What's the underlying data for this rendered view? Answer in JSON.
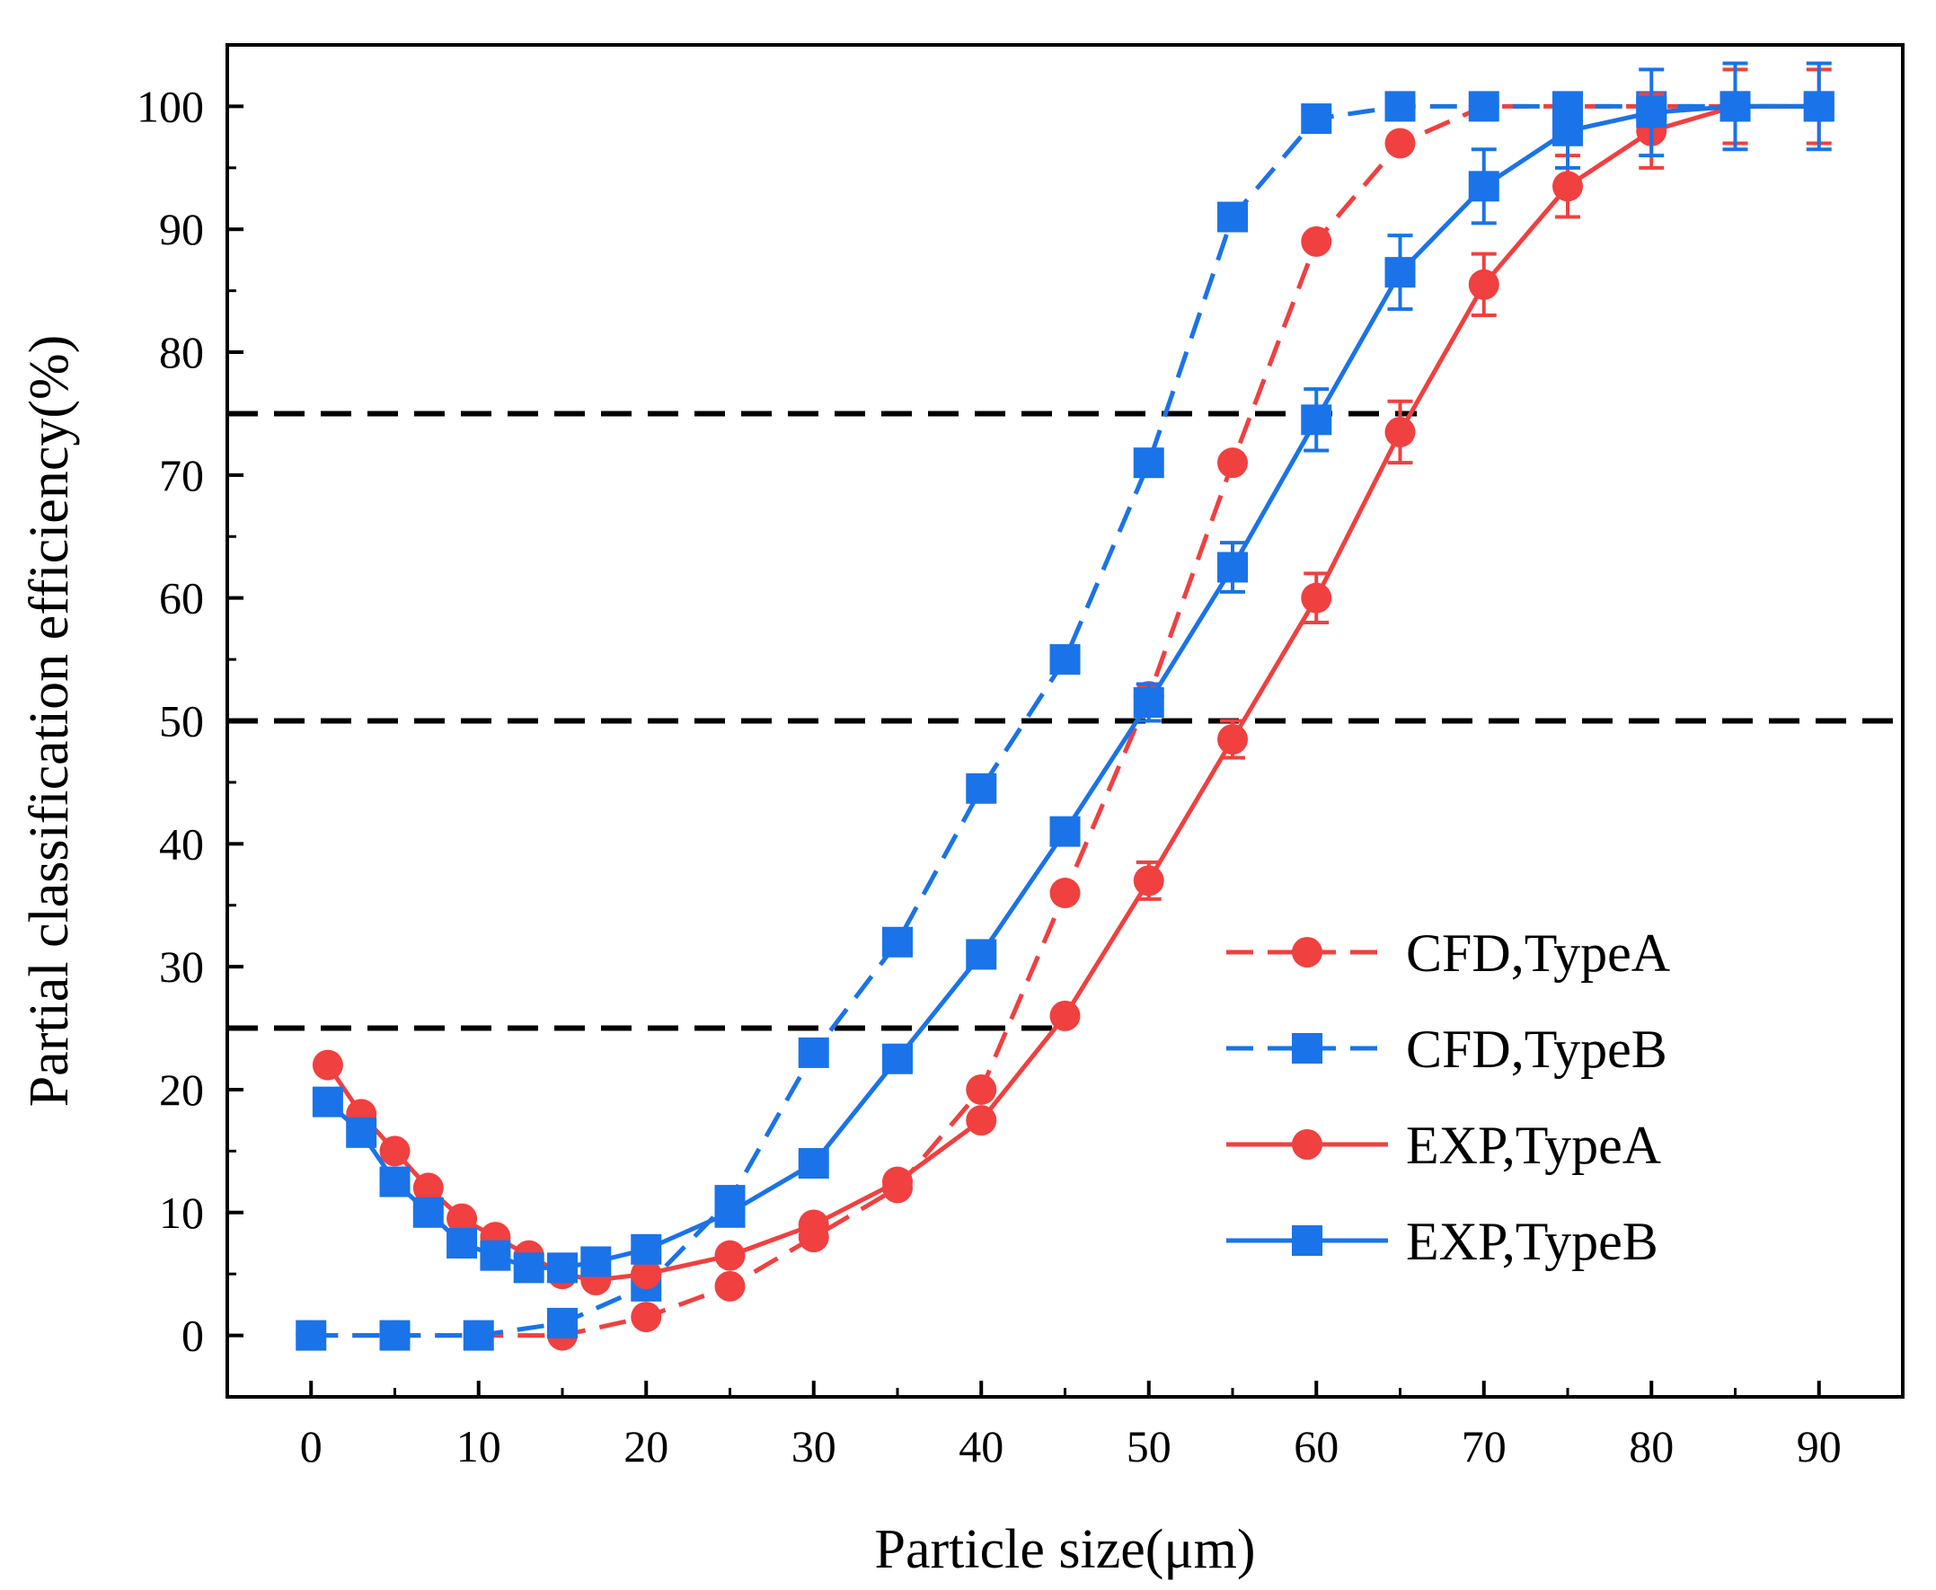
{
  "chart_data": {
    "type": "line",
    "title": "",
    "xlabel": "Particle size(μm)",
    "ylabel": "Partial classification efficiency(%)",
    "xlim": [
      -5,
      95
    ],
    "ylim": [
      -5,
      105
    ],
    "xticks": [
      0,
      10,
      20,
      30,
      40,
      50,
      60,
      70,
      80,
      90
    ],
    "yticks": [
      0,
      10,
      20,
      30,
      40,
      50,
      60,
      70,
      80,
      90,
      100
    ],
    "reference_lines": [
      {
        "y": 75,
        "x_start": -5,
        "x_end": 66
      },
      {
        "y": 50,
        "x_start": -5,
        "x_end": 95
      },
      {
        "y": 25,
        "x_start": -5,
        "x_end": 45
      }
    ],
    "legend_position": "lower-right",
    "series": [
      {
        "name": "CFD,TypeA",
        "color": "#f04040",
        "line": "dashed",
        "marker": "circle",
        "x": [
          0,
          5,
          10,
          15,
          20,
          25,
          30,
          35,
          40,
          45,
          50,
          55,
          60,
          65,
          70,
          75,
          80,
          85,
          90
        ],
        "y": [
          0,
          0,
          0,
          0,
          1.5,
          4,
          8,
          12,
          20,
          36,
          52,
          71,
          89,
          97,
          100,
          100,
          100,
          100,
          100
        ]
      },
      {
        "name": "CFD,TypeB",
        "color": "#1a73e8",
        "line": "dashed",
        "marker": "square",
        "x": [
          0,
          5,
          10,
          15,
          20,
          25,
          30,
          35,
          40,
          45,
          50,
          55,
          60,
          65,
          70,
          75,
          80,
          85,
          90
        ],
        "y": [
          0,
          0,
          0,
          1,
          4,
          11,
          23,
          32,
          44.5,
          55,
          71,
          91,
          99,
          100,
          100,
          100,
          100,
          100,
          100
        ]
      },
      {
        "name": "EXP,TypeA",
        "color": "#f04040",
        "line": "solid",
        "marker": "circle",
        "x": [
          1,
          3,
          5,
          7,
          9,
          11,
          13,
          15,
          17,
          20,
          25,
          30,
          35,
          40,
          45,
          50,
          55,
          60,
          65,
          70,
          75,
          80,
          85,
          90
        ],
        "y": [
          22,
          18,
          15,
          12,
          9.5,
          8,
          6.5,
          5,
          4.5,
          5,
          6.5,
          9,
          12.5,
          17.5,
          26,
          37,
          48.5,
          60,
          73.5,
          85.5,
          93.5,
          98,
          100,
          100
        ],
        "error": [
          0,
          0,
          0,
          0,
          0,
          0,
          0,
          0,
          0,
          0,
          0,
          0,
          0,
          0,
          0,
          1.5,
          1.5,
          2,
          2.5,
          2.5,
          2.5,
          3,
          3,
          3
        ]
      },
      {
        "name": "EXP,TypeB",
        "color": "#1a73e8",
        "line": "solid",
        "marker": "square",
        "x": [
          1,
          3,
          5,
          7,
          9,
          11,
          13,
          15,
          17,
          20,
          25,
          30,
          35,
          40,
          45,
          50,
          55,
          60,
          65,
          70,
          75,
          80,
          85,
          90
        ],
        "y": [
          19,
          16.5,
          12.5,
          10,
          7.5,
          6.5,
          5.5,
          5.5,
          6,
          7,
          10,
          14,
          22.5,
          31,
          41,
          51.5,
          62.5,
          74.5,
          86.5,
          93.5,
          98,
          99.5,
          100,
          100
        ],
        "error": [
          0,
          0,
          0,
          0,
          0,
          0,
          0,
          0,
          0,
          0,
          0,
          0,
          0,
          0,
          0,
          1.5,
          2,
          2.5,
          3,
          3,
          3,
          3.5,
          3.5,
          3.5
        ]
      }
    ]
  }
}
